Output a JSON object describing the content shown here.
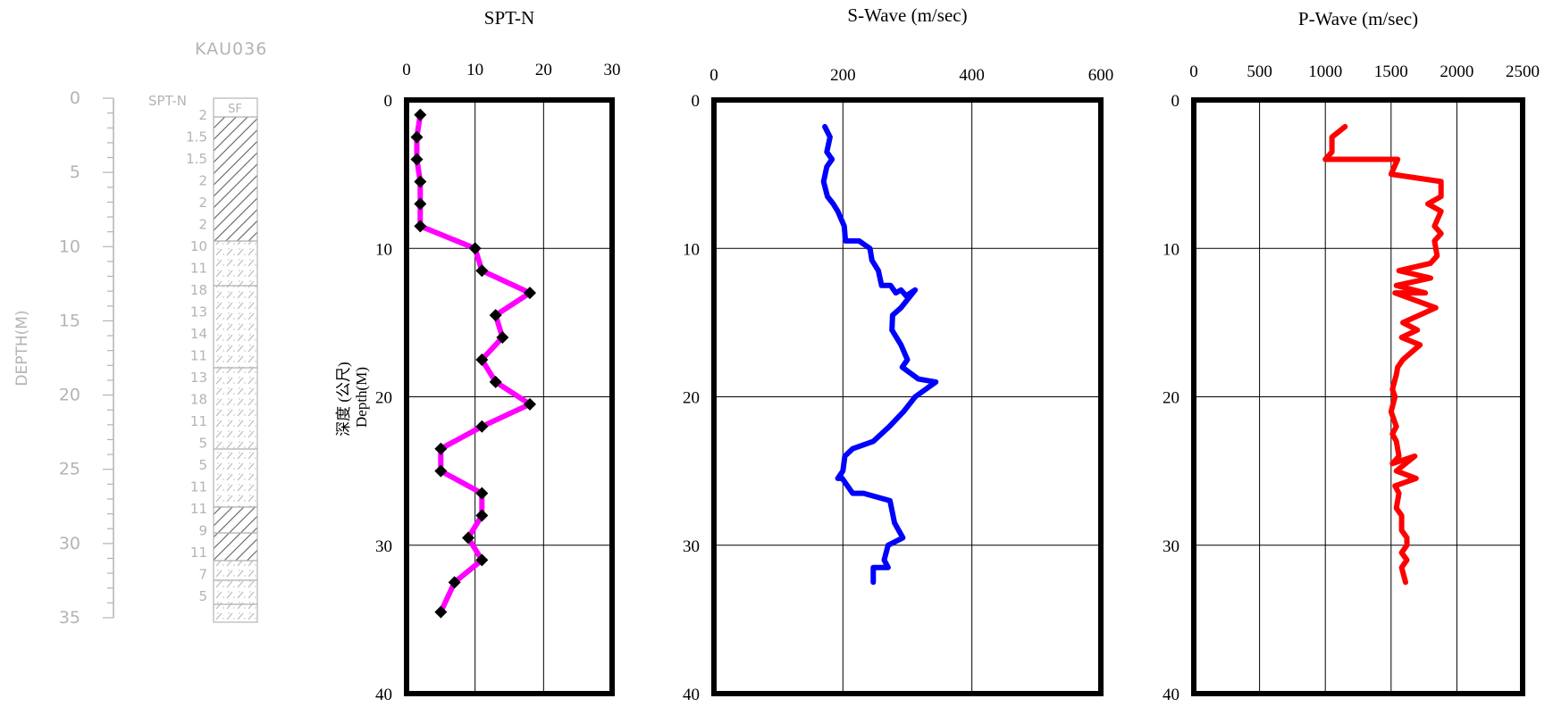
{
  "borehole": {
    "id": "KAU036",
    "depth_label": "DEPTH(M)",
    "spt_header": "SPT-N",
    "fill_header": "SF",
    "depth_ticks": [
      "0",
      "5",
      "10",
      "15",
      "20",
      "25",
      "30",
      "35"
    ],
    "spt_values": [
      "2",
      "1.5",
      "1.5",
      "2",
      "2",
      "2",
      "10",
      "11",
      "18",
      "13",
      "14",
      "11",
      "13",
      "18",
      "11",
      "5",
      "5",
      "11",
      "11",
      "9",
      "11",
      "7",
      "5"
    ]
  },
  "depth_axis_label": "深度 (公尺)\nDepth(M)",
  "colors": {
    "spt": "#ff00ff",
    "swave": "#0000ff",
    "pwave": "#ff0000",
    "marker": "#000000"
  },
  "chart_data": [
    {
      "type": "line",
      "title": "SPT-N",
      "xlim": [
        0,
        30
      ],
      "ylim": [
        0,
        40
      ],
      "y_inverted": true,
      "x_ticks": [
        "0",
        "10",
        "20",
        "30"
      ],
      "y_ticks": [
        "0",
        "10",
        "20",
        "30",
        "40"
      ],
      "grid": true,
      "markers": "diamond",
      "x": [
        2,
        1.5,
        1.5,
        2,
        2,
        2,
        10,
        11,
        18,
        13,
        14,
        11,
        13,
        18,
        11,
        5,
        5,
        11,
        11,
        9,
        11,
        7,
        5
      ],
      "y": [
        1,
        2.5,
        4,
        5.5,
        7,
        8.5,
        10,
        11.5,
        13,
        14.5,
        16,
        17.5,
        19,
        20.5,
        22,
        23.5,
        25,
        26.5,
        28,
        29.5,
        31,
        32.5,
        34.5
      ]
    },
    {
      "type": "line",
      "title": "S-Wave (m/sec)",
      "xlim": [
        0,
        600
      ],
      "ylim": [
        0,
        40
      ],
      "y_inverted": true,
      "x_ticks": [
        "0",
        "200",
        "400",
        "600"
      ],
      "y_ticks": [
        "0",
        "10",
        "20",
        "30",
        "40"
      ],
      "grid": true,
      "x": [
        172,
        180,
        175,
        183,
        175,
        170,
        176,
        185,
        192,
        197,
        202,
        204,
        225,
        242,
        245,
        255,
        260,
        274,
        282,
        290,
        298,
        312,
        290,
        277,
        276,
        290,
        300,
        292,
        317,
        344,
        312,
        294,
        272,
        247,
        215,
        203,
        200,
        192,
        199,
        215,
        232,
        273,
        280,
        293,
        270,
        264,
        270,
        247,
        247
      ],
      "y": [
        1.8,
        2.5,
        3.5,
        4.0,
        4.5,
        5.5,
        6.5,
        7.0,
        7.5,
        8.0,
        8.5,
        9.5,
        9.5,
        10.0,
        10.8,
        11.5,
        12.5,
        12.5,
        13.0,
        12.8,
        13.2,
        12.8,
        14.0,
        14.5,
        15.5,
        16.5,
        17.5,
        18.0,
        18.8,
        19.0,
        20.0,
        21.0,
        22.0,
        23.0,
        23.5,
        24.0,
        25.0,
        25.5,
        25.5,
        26.5,
        26.5,
        27.0,
        28.5,
        29.5,
        30.0,
        31.0,
        31.5,
        31.5,
        32.5
      ]
    },
    {
      "type": "line",
      "title": "P-Wave (m/sec)",
      "xlim": [
        0,
        2500
      ],
      "ylim": [
        0,
        40
      ],
      "y_inverted": true,
      "x_ticks": [
        "0",
        "500",
        "1000",
        "1500",
        "2000",
        "2500"
      ],
      "y_ticks": [
        "0",
        "10",
        "20",
        "30",
        "40"
      ],
      "grid": true,
      "x": [
        1150,
        1050,
        1050,
        1000,
        1550,
        1500,
        1880,
        1880,
        1780,
        1880,
        1830,
        1880,
        1830,
        1850,
        1800,
        1560,
        1800,
        1540,
        1760,
        1530,
        1840,
        1590,
        1700,
        1580,
        1720,
        1590,
        1550,
        1540,
        1510,
        1530,
        1500,
        1540,
        1510,
        1540,
        1560,
        1510,
        1680,
        1540,
        1690,
        1530,
        1560,
        1540,
        1580,
        1580,
        1620,
        1620,
        1580,
        1620,
        1580,
        1610
      ],
      "y": [
        1.8,
        2.5,
        3.5,
        4.0,
        4.0,
        5.0,
        5.5,
        6.5,
        7.0,
        7.5,
        8.5,
        9.0,
        9.5,
        10.5,
        11.0,
        11.5,
        12.0,
        12.5,
        13.0,
        13.0,
        14.0,
        15.0,
        15.5,
        16.0,
        16.5,
        17.5,
        18.0,
        18.5,
        19.5,
        20.0,
        21.0,
        22.0,
        22.5,
        23.0,
        24.0,
        24.5,
        24.0,
        25.0,
        25.5,
        26.0,
        26.5,
        27.5,
        28.0,
        29.0,
        29.5,
        30.0,
        30.5,
        31.0,
        31.5,
        32.5
      ]
    }
  ]
}
